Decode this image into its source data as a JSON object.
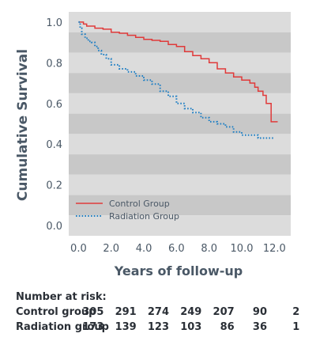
{
  "chart_data": {
    "type": "line",
    "title": "",
    "xlabel": "Years of follow-up",
    "ylabel": "Cumulative Survival",
    "xlim": [
      -0.6,
      13.0
    ],
    "ylim": [
      -0.05,
      1.05
    ],
    "x_ticks": [
      "0.0",
      "2.0",
      "4.0",
      "6.0",
      "8.0",
      "10.0",
      "12.0"
    ],
    "y_ticks": [
      "0.0",
      "0.2",
      "0.4",
      "0.6",
      "0.8",
      "1.0"
    ],
    "legend_position": "bottom-left",
    "background": "alternating gray horizontal bands",
    "series": [
      {
        "name": "Control Group",
        "color": "#e03a3a",
        "style": "solid",
        "x": [
          0,
          0.3,
          0.5,
          1.0,
          1.5,
          2.0,
          2.5,
          3.0,
          3.5,
          4.0,
          4.5,
          5.0,
          5.5,
          6.0,
          6.5,
          7.0,
          7.5,
          8.0,
          8.5,
          9.0,
          9.5,
          10.0,
          10.5,
          10.8,
          11.0,
          11.3,
          11.5,
          11.7,
          11.8,
          12.0,
          12.2
        ],
        "y": [
          1.0,
          0.99,
          0.98,
          0.97,
          0.965,
          0.95,
          0.945,
          0.935,
          0.925,
          0.915,
          0.91,
          0.905,
          0.89,
          0.88,
          0.855,
          0.835,
          0.82,
          0.8,
          0.77,
          0.75,
          0.73,
          0.715,
          0.7,
          0.68,
          0.66,
          0.64,
          0.6,
          0.6,
          0.51,
          0.51,
          0.51
        ]
      },
      {
        "name": "Radiation Group",
        "color": "#1f7fc4",
        "style": "dotted",
        "x": [
          0,
          0.1,
          0.2,
          0.4,
          0.6,
          0.8,
          1.0,
          1.2,
          1.4,
          1.7,
          2.0,
          2.5,
          3.0,
          3.5,
          4.0,
          4.5,
          5.0,
          5.5,
          6.0,
          6.5,
          7.0,
          7.5,
          8.0,
          8.5,
          9.0,
          9.5,
          10.0,
          10.5,
          11.0,
          11.5,
          12.0
        ],
        "y": [
          1.0,
          0.97,
          0.94,
          0.92,
          0.905,
          0.9,
          0.88,
          0.86,
          0.84,
          0.82,
          0.79,
          0.77,
          0.755,
          0.735,
          0.715,
          0.695,
          0.66,
          0.635,
          0.6,
          0.575,
          0.555,
          0.53,
          0.51,
          0.5,
          0.485,
          0.46,
          0.445,
          0.445,
          0.43,
          0.43,
          0.43
        ]
      }
    ]
  },
  "risk_table": {
    "title": "Number at risk:",
    "rows": [
      {
        "label": "Control group",
        "values": [
          "305",
          "291",
          "274",
          "249",
          "207",
          "90",
          "2"
        ]
      },
      {
        "label": "Radiation group",
        "values": [
          "173",
          "139",
          "123",
          "103",
          "86",
          "36",
          "1"
        ]
      }
    ]
  }
}
